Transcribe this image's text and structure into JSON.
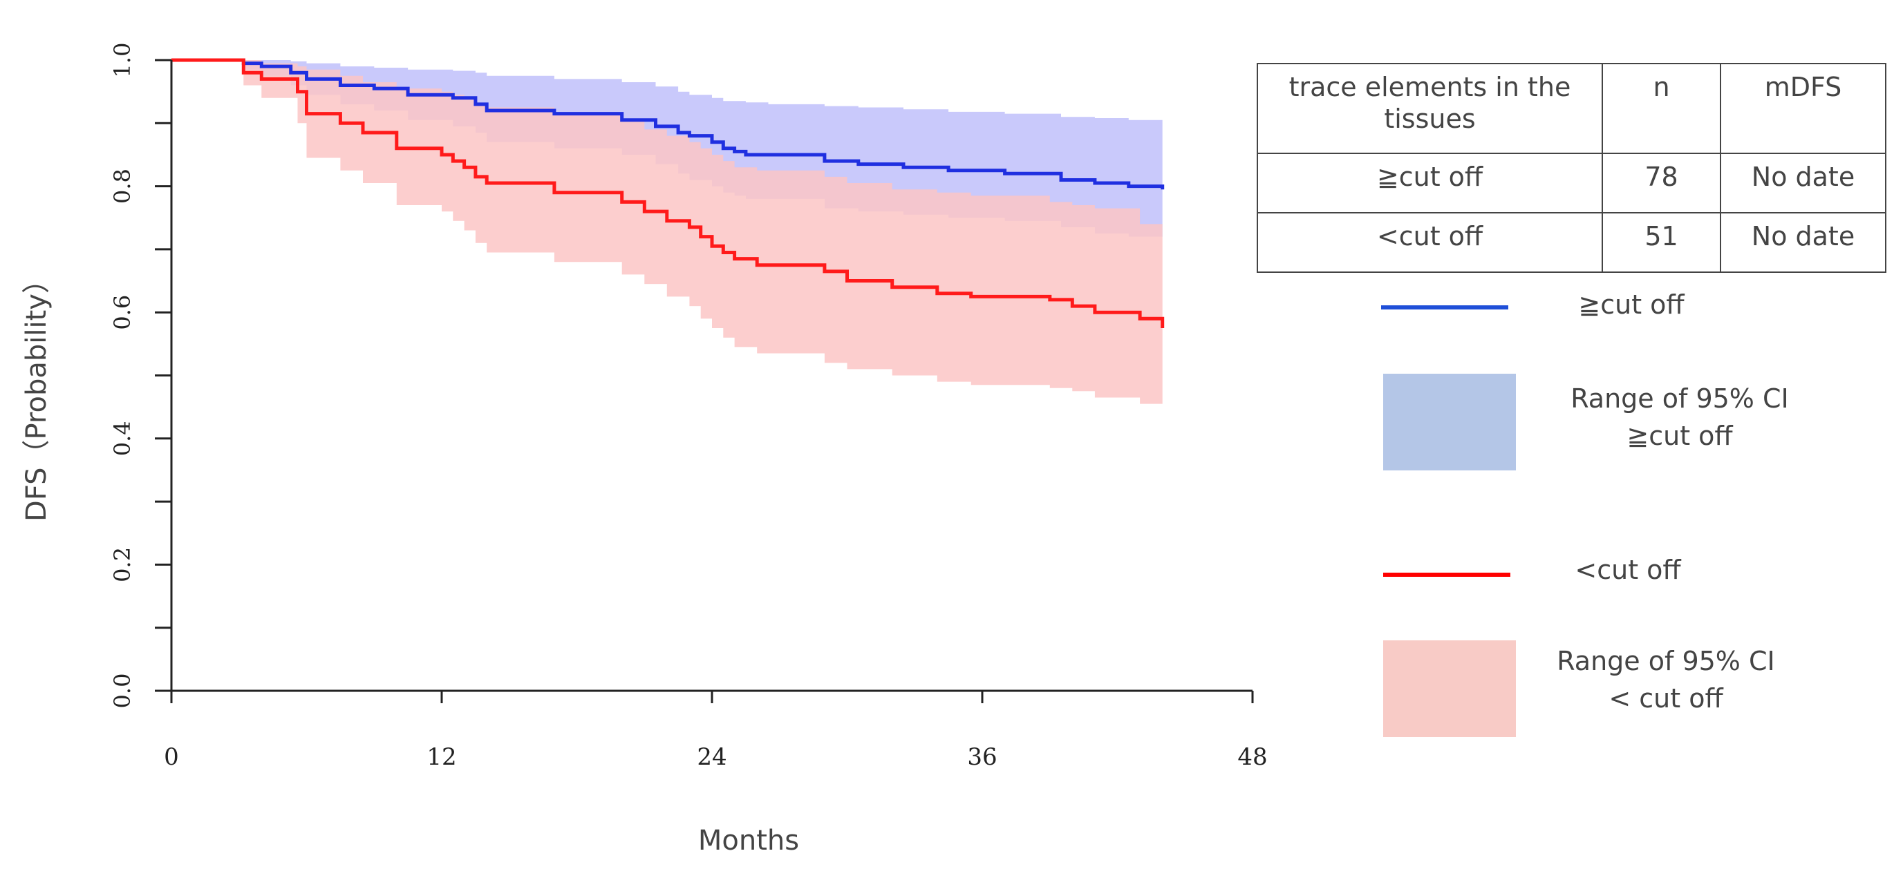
{
  "chart_data": {
    "type": "line",
    "title": "",
    "xlabel": "Months",
    "ylabel": "DFS（Probability）",
    "xlim": [
      0,
      48
    ],
    "ylim": [
      0,
      1.0
    ],
    "xticks": [
      0,
      12,
      24,
      36,
      48
    ],
    "xtick_labels": [
      "0",
      "12",
      "24",
      "36",
      "48"
    ],
    "yticks": [
      0.0,
      0.2,
      0.4,
      0.6,
      0.8,
      1.0
    ],
    "ytick_labels": [
      "0.0",
      "0.2",
      "0.4",
      "0.6",
      "0.8",
      "1.0"
    ],
    "series": [
      {
        "name": "≧cut off",
        "color": "#1f2fe0",
        "ci_color": "#b7b7fa",
        "x": [
          0,
          3.2,
          4.0,
          5.3,
          6.0,
          7.5,
          9.0,
          10.5,
          12.5,
          13.5,
          14.0,
          17.0,
          20.0,
          21.5,
          22.5,
          23.0,
          24.0,
          24.5,
          25.0,
          25.5,
          26.5,
          29.0,
          30.5,
          32.5,
          34.5,
          37.0,
          39.5,
          41.0,
          42.5,
          44.0
        ],
        "values": [
          1.0,
          0.995,
          0.99,
          0.98,
          0.97,
          0.96,
          0.955,
          0.945,
          0.94,
          0.93,
          0.92,
          0.915,
          0.905,
          0.895,
          0.885,
          0.88,
          0.87,
          0.86,
          0.855,
          0.85,
          0.85,
          0.84,
          0.835,
          0.83,
          0.825,
          0.82,
          0.81,
          0.805,
          0.8,
          0.795
        ],
        "ci_upper": [
          1.0,
          1.0,
          1.0,
          0.998,
          0.995,
          0.99,
          0.988,
          0.985,
          0.983,
          0.98,
          0.975,
          0.97,
          0.965,
          0.958,
          0.95,
          0.945,
          0.94,
          0.935,
          0.935,
          0.933,
          0.93,
          0.927,
          0.925,
          0.922,
          0.918,
          0.915,
          0.91,
          0.908,
          0.905,
          0.9
        ],
        "ci_lower": [
          1.0,
          0.985,
          0.975,
          0.96,
          0.945,
          0.93,
          0.92,
          0.905,
          0.895,
          0.885,
          0.87,
          0.86,
          0.85,
          0.835,
          0.82,
          0.81,
          0.8,
          0.79,
          0.785,
          0.78,
          0.78,
          0.765,
          0.76,
          0.755,
          0.75,
          0.745,
          0.735,
          0.725,
          0.72,
          0.71
        ]
      },
      {
        "name": "<cut off",
        "color": "#ff1a1a",
        "ci_color": "#fcc5c5",
        "x": [
          0,
          3.2,
          4.0,
          5.6,
          6.0,
          7.5,
          8.5,
          10.0,
          12.0,
          12.5,
          13.0,
          13.5,
          14.0,
          17.0,
          20.0,
          21.0,
          22.0,
          23.0,
          23.5,
          24.0,
          24.5,
          25.0,
          26.0,
          29.0,
          30.0,
          32.0,
          34.0,
          35.5,
          39.0,
          40.0,
          41.0,
          43.0,
          44.0
        ],
        "values": [
          1.0,
          0.98,
          0.97,
          0.95,
          0.915,
          0.9,
          0.885,
          0.86,
          0.85,
          0.84,
          0.83,
          0.815,
          0.805,
          0.79,
          0.775,
          0.76,
          0.745,
          0.735,
          0.72,
          0.705,
          0.695,
          0.685,
          0.675,
          0.665,
          0.65,
          0.64,
          0.63,
          0.625,
          0.62,
          0.61,
          0.6,
          0.59,
          0.575
        ],
        "ci_upper": [
          1.0,
          1.0,
          0.995,
          0.99,
          0.985,
          0.975,
          0.965,
          0.955,
          0.95,
          0.945,
          0.94,
          0.93,
          0.925,
          0.915,
          0.905,
          0.89,
          0.88,
          0.87,
          0.86,
          0.85,
          0.84,
          0.83,
          0.825,
          0.815,
          0.805,
          0.795,
          0.79,
          0.785,
          0.775,
          0.77,
          0.765,
          0.74,
          0.71
        ],
        "ci_lower": [
          1.0,
          0.96,
          0.94,
          0.9,
          0.845,
          0.825,
          0.805,
          0.77,
          0.76,
          0.745,
          0.73,
          0.71,
          0.695,
          0.68,
          0.66,
          0.645,
          0.625,
          0.61,
          0.59,
          0.575,
          0.56,
          0.545,
          0.535,
          0.52,
          0.51,
          0.5,
          0.49,
          0.485,
          0.48,
          0.475,
          0.465,
          0.455,
          0.445
        ]
      }
    ]
  },
  "table": {
    "headers": [
      "trace elements in the tissues",
      "n",
      "mDFS"
    ],
    "rows": [
      [
        "≧cut off",
        "78",
        "No date"
      ],
      [
        "<cut off",
        "51",
        "No date"
      ]
    ]
  },
  "legend": {
    "high_line_label": "≧cut off",
    "high_ci_label_1": "Range of 95% CI",
    "high_ci_label_2": "≧cut off",
    "low_line_label": "<cut off",
    "low_ci_label_1": "Range of 95% CI",
    "low_ci_label_2": "< cut off",
    "colors": {
      "high_line": "#1f4fd8",
      "high_box": "#b4c6e7",
      "low_line": "#ff0000",
      "low_box": "#f8cbc6"
    }
  }
}
